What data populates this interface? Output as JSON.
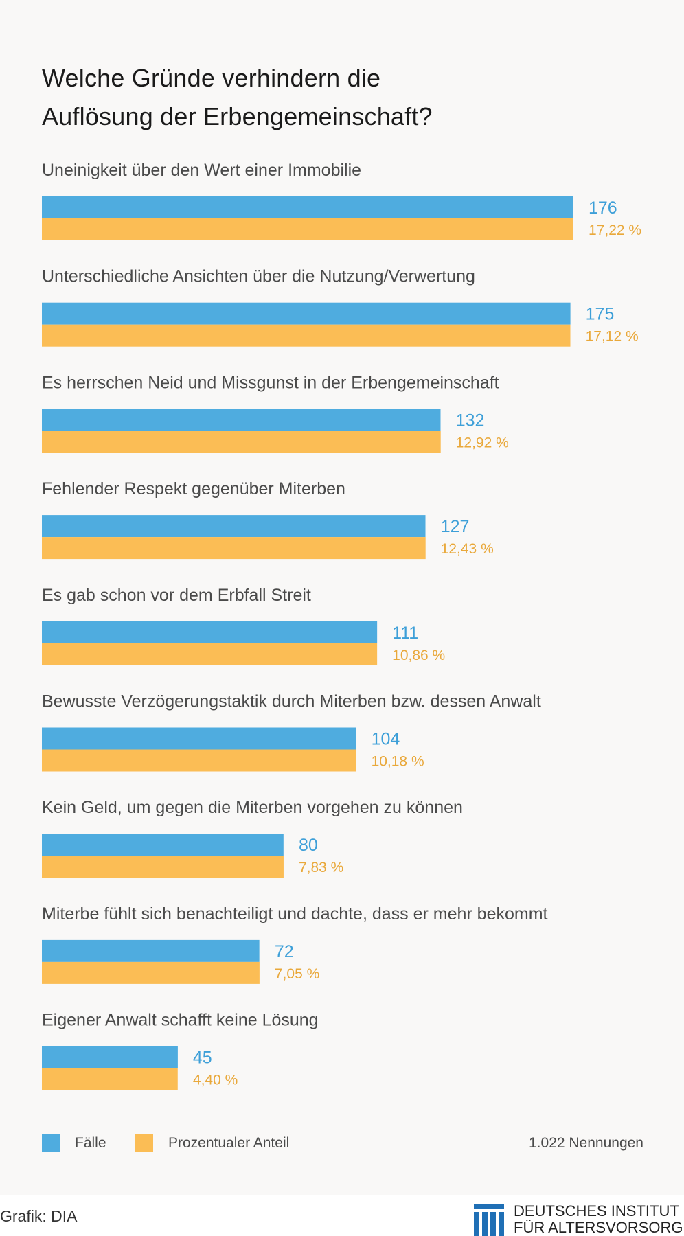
{
  "title_lines": [
    "Welche Gründe verhindern die",
    "Auflösung der Erbengemeinschaft?"
  ],
  "colors": {
    "count": "#4facdf",
    "percent": "#fbbd55",
    "count_text": "#3d9fd8",
    "percent_text": "#e9a83a"
  },
  "chart_data": {
    "type": "bar",
    "orientation": "horizontal",
    "title": "Welche Gründe verhindern die Auflösung der Erbengemeinschaft?",
    "categories": [
      "Uneinigkeit über den Wert einer Immobilie",
      "Unterschiedliche Ansichten über die Nutzung/Verwertung",
      "Es herrschen Neid und Missgunst in der Erbengemeinschaft",
      "Fehlender Respekt gegenüber Miterben",
      "Es gab schon vor dem Erbfall Streit",
      "Bewusste Verzögerungstaktik durch Miterben bzw. dessen Anwalt",
      "Kein Geld, um gegen die Miterben vorgehen zu können",
      "Miterbe fühlt sich benachteiligt und dachte, dass er mehr bekommt",
      "Eigener Anwalt schafft keine Lösung"
    ],
    "series": [
      {
        "name": "Fälle",
        "values": [
          176,
          175,
          132,
          127,
          111,
          104,
          80,
          72,
          45
        ],
        "labels": [
          "176",
          "175",
          "132",
          "127",
          "111",
          "104",
          "80",
          "72",
          "45"
        ]
      },
      {
        "name": "Prozentualer Anteil",
        "values": [
          17.22,
          17.12,
          12.92,
          12.43,
          10.86,
          10.18,
          7.83,
          7.05,
          4.4
        ],
        "labels": [
          "17,22 %",
          "17,12 %",
          "12,92 %",
          "12,43 %",
          "10,86 %",
          "10,18 %",
          "7,83 %",
          "7,05 %",
          "4,40 %"
        ]
      }
    ],
    "grid": false,
    "legend_position": "bottom-left"
  },
  "legend": {
    "items": [
      {
        "label": "Fälle",
        "color": "#4facdf"
      },
      {
        "label": "Prozentualer Anteil",
        "color": "#fbbd55"
      }
    ],
    "total": "1.022 Nennungen"
  },
  "footer": {
    "credit": "Grafik: DIA",
    "logo_lines": [
      "DEUTSCHES INSTITUT",
      "FÜR ALTERSVORSORGE"
    ]
  }
}
